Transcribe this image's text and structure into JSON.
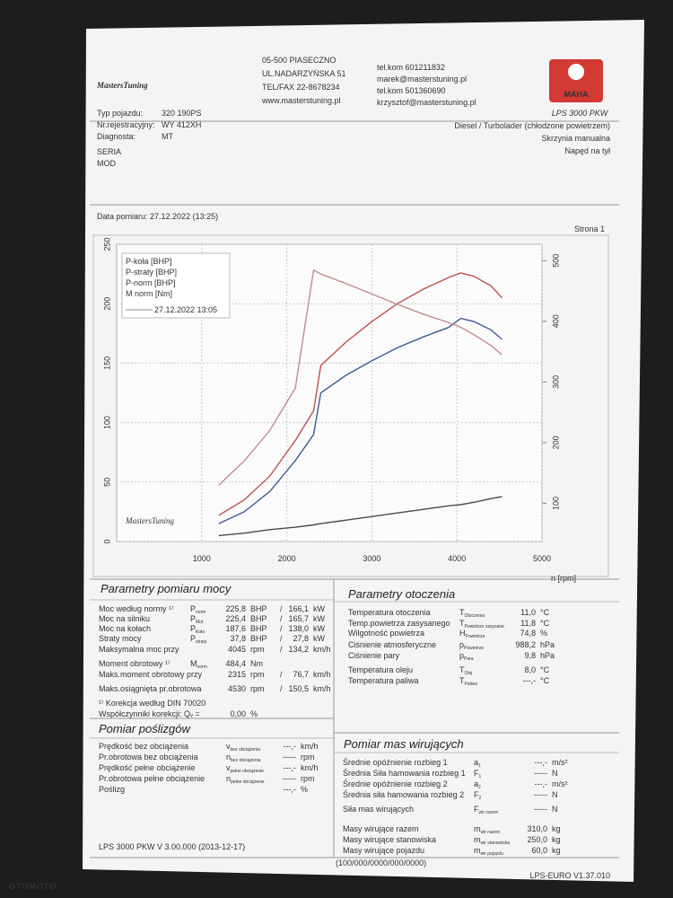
{
  "header": {
    "logo": "MastersTuning",
    "address": [
      "05-500 PIASECZNO",
      "UL.NADARZYŃSKA 51",
      "TEL/FAX 22-8678234",
      "www.masterstuning.pl"
    ],
    "contacts": [
      "tel.kom 601211832",
      "marek@masterstuning.pl",
      "tel.kom 501360690",
      "krzysztof@masterstuning.pl"
    ],
    "brand": "MAHA",
    "model": "LPS 3000 PKW"
  },
  "vehicle": {
    "fields": [
      {
        "label": "Typ pojazdu:",
        "value": "320 190PS"
      },
      {
        "label": "Nr.rejestracyjny:",
        "value": "WY 412XH"
      },
      {
        "label": "Diagnosta:",
        "value": "MT"
      }
    ],
    "specs": [
      "Diesel / Turbolader (chłodzone powietrzem)",
      "Skrzynia manualna",
      "Napęd na tył"
    ],
    "notes": [
      "SERIA",
      "MOD"
    ]
  },
  "measurement": {
    "date": "Data pomiaru: 27.12.2022 (13:25)",
    "page": "Strona 1"
  },
  "chart_data": {
    "type": "line",
    "x": [
      1200,
      1500,
      1800,
      2100,
      2315,
      2400,
      2700,
      3000,
      3300,
      3600,
      3900,
      4045,
      4200,
      4400,
      4530
    ],
    "series": [
      {
        "name": "P-koła [BHP]",
        "color": "#3f5b93",
        "values": [
          15,
          25,
          42,
          68,
          90,
          125,
          140,
          152,
          163,
          172,
          180,
          187.6,
          185,
          178,
          170
        ]
      },
      {
        "name": "P-straty [BHP]",
        "color": "#4a4a55",
        "values": [
          5,
          7,
          10,
          12,
          14,
          15,
          18,
          21,
          24,
          27,
          30,
          31,
          33,
          36,
          37.8
        ]
      },
      {
        "name": "P-norm [BHP]",
        "color": "#c0504d",
        "values": [
          22,
          35,
          55,
          85,
          110,
          148,
          168,
          185,
          200,
          212,
          222,
          225.8,
          223,
          215,
          205
        ]
      },
      {
        "name": "M norm [Nm]",
        "color": "#c48a8a",
        "axis": "y2",
        "values": [
          130,
          170,
          220,
          290,
          484.4,
          478,
          462,
          445,
          428,
          412,
          398,
          390,
          378,
          360,
          345
        ]
      }
    ],
    "legend_note": "27.12.2022 13:05",
    "x_label": "n [rpm]",
    "xlim": [
      0,
      5000
    ],
    "xticks": [
      1000,
      2000,
      3000,
      4000,
      5000
    ],
    "ylim": [
      0,
      250
    ],
    "yticks": [
      0,
      50,
      100,
      150,
      200,
      250
    ],
    "y2lim": [
      37,
      527
    ],
    "y2ticks": [
      100,
      200,
      300,
      400,
      500
    ],
    "grid": true
  },
  "power": {
    "title": "Parametry pomiaru mocy",
    "rows": [
      {
        "label": "Moc według normy ¹⁾",
        "color": "#b23a3a",
        "symbol": "P",
        "sub": "norm",
        "value": "225,8",
        "unit": "BHP",
        "sep": "/",
        "value2": "166,1",
        "unit2": "kW"
      },
      {
        "label": "Moc na silniku",
        "color": "#b23a3a",
        "symbol": "P",
        "sub": "Mot",
        "value": "225,4",
        "unit": "BHP",
        "sep": "/",
        "value2": "165,7",
        "unit2": "kW"
      },
      {
        "label": "Moc na kołach",
        "color": "#3f5b93",
        "symbol": "P",
        "sub": "Koła",
        "value": "187,6",
        "unit": "BHP",
        "sep": "/",
        "value2": "138,0",
        "unit2": "kW"
      },
      {
        "label": "Straty mocy",
        "color": "#333333",
        "symbol": "P",
        "sub": "straty",
        "value": "37,8",
        "unit": "BHP",
        "sep": "/",
        "value2": "27,8",
        "unit2": "kW"
      },
      {
        "label": "Maksymalna moc przy",
        "color": "#333333",
        "value": "4045",
        "unit": "rpm",
        "sep": "/",
        "value2": "134,2",
        "unit2": "km/h"
      },
      {
        "label": "Moment obrotowy ¹⁾",
        "color": "#c48a8a",
        "symbol": "M",
        "sub": "norm",
        "value": "484,4",
        "unit": "Nm"
      },
      {
        "label": "Maks.moment obrotowy przy",
        "color": "#333333",
        "value": "2315",
        "unit": "rpm",
        "sep": "/",
        "value2": "76,7",
        "unit2": "km/h"
      },
      {
        "label": "Maks.osiągnięta pr.obrotowa",
        "color": "#333333",
        "value": "4530",
        "unit": "rpm",
        "sep": "/",
        "value2": "150,5",
        "unit2": "km/h"
      },
      {
        "label": "¹⁾ Korekcja według DIN 70020",
        "color": "#b23a3a"
      },
      {
        "label": "Współczynniki korekcji: Qᵥ =",
        "color": "#b23a3a",
        "value": "0,00",
        "unit": "%"
      }
    ]
  },
  "ambient": {
    "title": "Parametry otoczenia",
    "rows": [
      {
        "label": "Temperatura otoczenia",
        "symbol": "T",
        "sub": "Otoczenia",
        "value": "11,0",
        "unit": "°C"
      },
      {
        "label": "Temp.powietrza zasysanego",
        "symbol": "T",
        "sub": "Powietrze zasysane",
        "value": "11,8",
        "unit": "°C"
      },
      {
        "label": "Wilgotność powietrza",
        "symbol": "H",
        "sub": "Powietrze",
        "value": "74,8",
        "unit": "%"
      },
      {
        "label": "Ciśnienie atmosferyczne",
        "symbol": "p",
        "sub": "Powietrze",
        "value": "988,2",
        "unit": "hPa"
      },
      {
        "label": "Ciśnienie pary",
        "symbol": "p",
        "sub": "Para",
        "value": "9,8",
        "unit": "hPa"
      },
      {
        "label": "Temperatura oleju",
        "symbol": "T",
        "sub": "Olej",
        "value": "8,0",
        "unit": "°C"
      },
      {
        "label": "Temperatura paliwa",
        "symbol": "T",
        "sub": "Paliwo",
        "value": "---,-",
        "unit": "°C"
      }
    ]
  },
  "slip": {
    "title": "Pomiar poślizgów",
    "rows": [
      {
        "label": "Prędkość bez obciążenia",
        "symbol": "v",
        "sub": "bez obciążenia",
        "value": "---,-",
        "unit": "km/h"
      },
      {
        "label": "Pr.obrotowa bez obciążenia",
        "symbol": "n",
        "sub": "bez obciążenia",
        "value": "-----",
        "unit": "rpm"
      },
      {
        "label": "Prędkość pełne obciążenie",
        "symbol": "v",
        "sub": "pełne obciążenie",
        "value": "---,-",
        "unit": "km/h"
      },
      {
        "label": "Pr.obrotowa pełne obciążenie",
        "symbol": "n",
        "sub": "pełne obciążenie",
        "value": "-----",
        "unit": "rpm"
      },
      {
        "label": "Poślizg",
        "value": "---,-",
        "unit": "%"
      }
    ]
  },
  "inertia": {
    "title": "Pomiar mas wirujących",
    "rows": [
      {
        "label": "Średnie opóźnienie rozbieg 1",
        "symbol": "a",
        "sub": "1",
        "value": "---,-",
        "unit": "m/s²"
      },
      {
        "label": "Średnia Siła hamowania rozbieg 1",
        "symbol": "F",
        "sub": "1",
        "value": "-----",
        "unit": "N"
      },
      {
        "label": "Średnie opóźnienie rozbieg 2",
        "symbol": "a",
        "sub": "2",
        "value": "---,-",
        "unit": "m/s²"
      },
      {
        "label": "Średnia siła hamowania rozbieg 2",
        "symbol": "F",
        "sub": "2",
        "value": "-----",
        "unit": "N"
      },
      {
        "label": "Siła mas wirujących",
        "symbol": "F",
        "sub": "wir razem",
        "value": "-----",
        "unit": "N"
      },
      {
        "label": "Masy wirujące razem",
        "symbol": "m",
        "sub": "wir razem",
        "value": "310,0",
        "unit": "kg"
      },
      {
        "label": "Masy wirujące stanowiska",
        "symbol": "m",
        "sub": "wir stanowiska",
        "value": "250,0",
        "unit": "kg"
      },
      {
        "label": "Masy wirujące pojazdu",
        "symbol": "m",
        "sub": "wir pojazdu",
        "value": "60,0",
        "unit": "kg"
      }
    ]
  },
  "footer": {
    "left": "LPS 3000 PKW V 3.00.000 (2013-12-17)",
    "center": "(100/000/0000/000/0000)",
    "right": "LPS-EURO V1.37.010"
  },
  "watermark": "OTOMOTO"
}
